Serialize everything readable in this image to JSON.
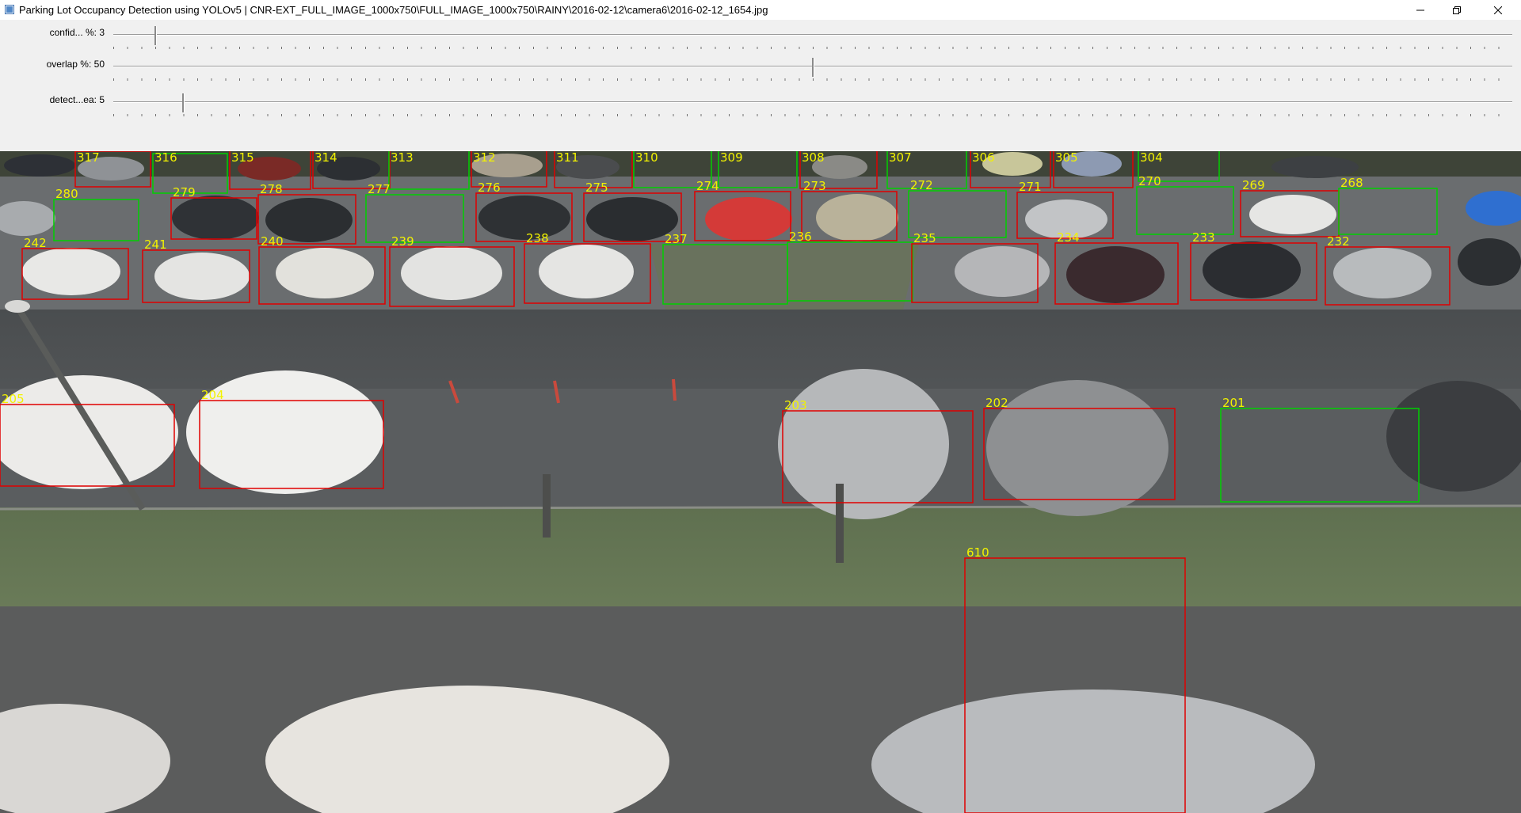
{
  "window": {
    "title": "Parking Lot Occupancy Detection using YOLOv5 | CNR-EXT_FULL_IMAGE_1000x750\\FULL_IMAGE_1000x750\\RAINY\\2016-02-12\\camera6\\2016-02-12_1654.jpg",
    "icon": "app-icon",
    "buttons": [
      {
        "name": "minimize",
        "icon": "minimize-icon"
      },
      {
        "name": "maximize",
        "icon": "restore-icon"
      },
      {
        "name": "close",
        "icon": "close-icon"
      }
    ]
  },
  "trackbars": [
    {
      "id": "confidence",
      "label": "confid... %: 3",
      "value": 3,
      "max": 100
    },
    {
      "id": "overlap",
      "label": "overlap %: 50",
      "value": 50,
      "max": 100
    },
    {
      "id": "detect-area",
      "label": "detect...ea: 5",
      "value": 5,
      "max": 100
    }
  ],
  "colors": {
    "occupied": "#e00000",
    "free": "#00d000",
    "label": "#f2f200"
  },
  "spots": [
    {
      "id": "317",
      "status": "occupied"
    },
    {
      "id": "316",
      "status": "free"
    },
    {
      "id": "315",
      "status": "occupied"
    },
    {
      "id": "314",
      "status": "occupied"
    },
    {
      "id": "313",
      "status": "free"
    },
    {
      "id": "312",
      "status": "occupied"
    },
    {
      "id": "311",
      "status": "occupied"
    },
    {
      "id": "310",
      "status": "free"
    },
    {
      "id": "309",
      "status": "free"
    },
    {
      "id": "308",
      "status": "occupied"
    },
    {
      "id": "307",
      "status": "free"
    },
    {
      "id": "306",
      "status": "occupied"
    },
    {
      "id": "305",
      "status": "occupied"
    },
    {
      "id": "304",
      "status": "free"
    },
    {
      "id": "280",
      "status": "free"
    },
    {
      "id": "279",
      "status": "occupied"
    },
    {
      "id": "278",
      "status": "occupied"
    },
    {
      "id": "277",
      "status": "free"
    },
    {
      "id": "276",
      "status": "occupied"
    },
    {
      "id": "275",
      "status": "occupied"
    },
    {
      "id": "274",
      "status": "occupied"
    },
    {
      "id": "273",
      "status": "occupied"
    },
    {
      "id": "272",
      "status": "free"
    },
    {
      "id": "271",
      "status": "occupied"
    },
    {
      "id": "270",
      "status": "free"
    },
    {
      "id": "269",
      "status": "occupied"
    },
    {
      "id": "268",
      "status": "free"
    },
    {
      "id": "242",
      "status": "occupied"
    },
    {
      "id": "241",
      "status": "occupied"
    },
    {
      "id": "240",
      "status": "occupied"
    },
    {
      "id": "239",
      "status": "occupied"
    },
    {
      "id": "238",
      "status": "occupied"
    },
    {
      "id": "237",
      "status": "free"
    },
    {
      "id": "236",
      "status": "free"
    },
    {
      "id": "235",
      "status": "occupied"
    },
    {
      "id": "234",
      "status": "occupied"
    },
    {
      "id": "233",
      "status": "occupied"
    },
    {
      "id": "232",
      "status": "occupied"
    },
    {
      "id": "205",
      "status": "occupied"
    },
    {
      "id": "204",
      "status": "occupied"
    },
    {
      "id": "203",
      "status": "occupied"
    },
    {
      "id": "202",
      "status": "occupied"
    },
    {
      "id": "201",
      "status": "free"
    },
    {
      "id": "610",
      "status": "occupied"
    }
  ]
}
